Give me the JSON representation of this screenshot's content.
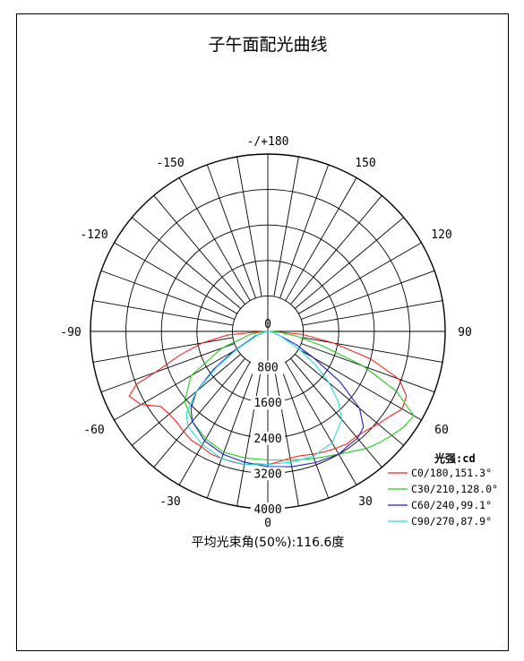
{
  "chart_data": {
    "type": "polar",
    "title": "子午面配光曲线",
    "angle_labels": [
      {
        "deg": 180,
        "text": "-/+180"
      },
      {
        "deg": -150,
        "text": "-150"
      },
      {
        "deg": 150,
        "text": "150"
      },
      {
        "deg": -120,
        "text": "-120"
      },
      {
        "deg": 120,
        "text": "120"
      },
      {
        "deg": -90,
        "text": "-90"
      },
      {
        "deg": 90,
        "text": "90"
      },
      {
        "deg": -60,
        "text": "-60"
      },
      {
        "deg": 60,
        "text": "60"
      },
      {
        "deg": -30,
        "text": "-30"
      },
      {
        "deg": 30,
        "text": "30"
      },
      {
        "deg": 0,
        "text": "0"
      }
    ],
    "radial_ticks": [
      "0",
      "800",
      "1600",
      "2400",
      "3200",
      "4000"
    ],
    "rmax": 4000,
    "unit_label": "光强:cd",
    "series": [
      {
        "name": "C0/180,151.3°",
        "color": "#ff2020",
        "points": [
          [
            -90,
            100
          ],
          [
            -85,
            900
          ],
          [
            -80,
            1500
          ],
          [
            -75,
            2050
          ],
          [
            -70,
            2700
          ],
          [
            -68,
            3200
          ],
          [
            -65,
            3450
          ],
          [
            -60,
            3300
          ],
          [
            -55,
            2950
          ],
          [
            -50,
            2900
          ],
          [
            -45,
            2900
          ],
          [
            -40,
            2950
          ],
          [
            -35,
            3000
          ],
          [
            -30,
            3000
          ],
          [
            -25,
            3050
          ],
          [
            -20,
            3050
          ],
          [
            -15,
            3050
          ],
          [
            -10,
            3050
          ],
          [
            -5,
            3000
          ],
          [
            0,
            3000
          ],
          [
            5,
            2950
          ],
          [
            10,
            2900
          ],
          [
            15,
            2900
          ],
          [
            20,
            2950
          ],
          [
            25,
            3000
          ],
          [
            30,
            3050
          ],
          [
            35,
            3100
          ],
          [
            40,
            3100
          ],
          [
            45,
            3150
          ],
          [
            50,
            3250
          ],
          [
            55,
            3350
          ],
          [
            60,
            3500
          ],
          [
            65,
            3450
          ],
          [
            70,
            3150
          ],
          [
            75,
            2400
          ],
          [
            80,
            1500
          ],
          [
            85,
            800
          ],
          [
            90,
            100
          ]
        ]
      },
      {
        "name": "C30/210,128.0°",
        "color": "#22cc22",
        "points": [
          [
            -90,
            80
          ],
          [
            -80,
            400
          ],
          [
            -70,
            1100
          ],
          [
            -60,
            2000
          ],
          [
            -50,
            2450
          ],
          [
            -40,
            2650
          ],
          [
            -30,
            2800
          ],
          [
            -20,
            2900
          ],
          [
            -10,
            2900
          ],
          [
            0,
            2900
          ],
          [
            10,
            2950
          ],
          [
            20,
            3050
          ],
          [
            30,
            3200
          ],
          [
            40,
            3450
          ],
          [
            45,
            3550
          ],
          [
            50,
            3650
          ],
          [
            55,
            3750
          ],
          [
            60,
            3800
          ],
          [
            65,
            3200
          ],
          [
            70,
            2300
          ],
          [
            75,
            1300
          ],
          [
            80,
            700
          ],
          [
            85,
            300
          ],
          [
            90,
            80
          ]
        ]
      },
      {
        "name": "C60/240,99.1°",
        "color": "#2020cc",
        "points": [
          [
            -90,
            40
          ],
          [
            -70,
            300
          ],
          [
            -60,
            900
          ],
          [
            -55,
            1500
          ],
          [
            -50,
            2100
          ],
          [
            -45,
            2450
          ],
          [
            -40,
            2650
          ],
          [
            -30,
            2850
          ],
          [
            -20,
            2950
          ],
          [
            -10,
            3000
          ],
          [
            0,
            3050
          ],
          [
            10,
            3100
          ],
          [
            20,
            3150
          ],
          [
            30,
            3200
          ],
          [
            35,
            3150
          ],
          [
            40,
            3150
          ],
          [
            45,
            3050
          ],
          [
            50,
            2700
          ],
          [
            55,
            2000
          ],
          [
            60,
            1200
          ],
          [
            65,
            700
          ],
          [
            70,
            300
          ],
          [
            80,
            120
          ],
          [
            90,
            40
          ]
        ]
      },
      {
        "name": "C90/270,87.9°",
        "color": "#22dddd",
        "points": [
          [
            -90,
            30
          ],
          [
            -70,
            250
          ],
          [
            -60,
            800
          ],
          [
            -55,
            1400
          ],
          [
            -50,
            2100
          ],
          [
            -45,
            2600
          ],
          [
            -40,
            2800
          ],
          [
            -30,
            2950
          ],
          [
            -20,
            3050
          ],
          [
            -10,
            3050
          ],
          [
            0,
            3000
          ],
          [
            10,
            3000
          ],
          [
            20,
            3000
          ],
          [
            30,
            2900
          ],
          [
            40,
            2600
          ],
          [
            45,
            2250
          ],
          [
            50,
            1800
          ],
          [
            55,
            1300
          ],
          [
            60,
            850
          ],
          [
            70,
            300
          ],
          [
            80,
            120
          ],
          [
            90,
            30
          ]
        ]
      }
    ],
    "grid": true,
    "legend_position": "bottom-right"
  },
  "beam_angle_text": "平均光束角(50%):116.6度"
}
